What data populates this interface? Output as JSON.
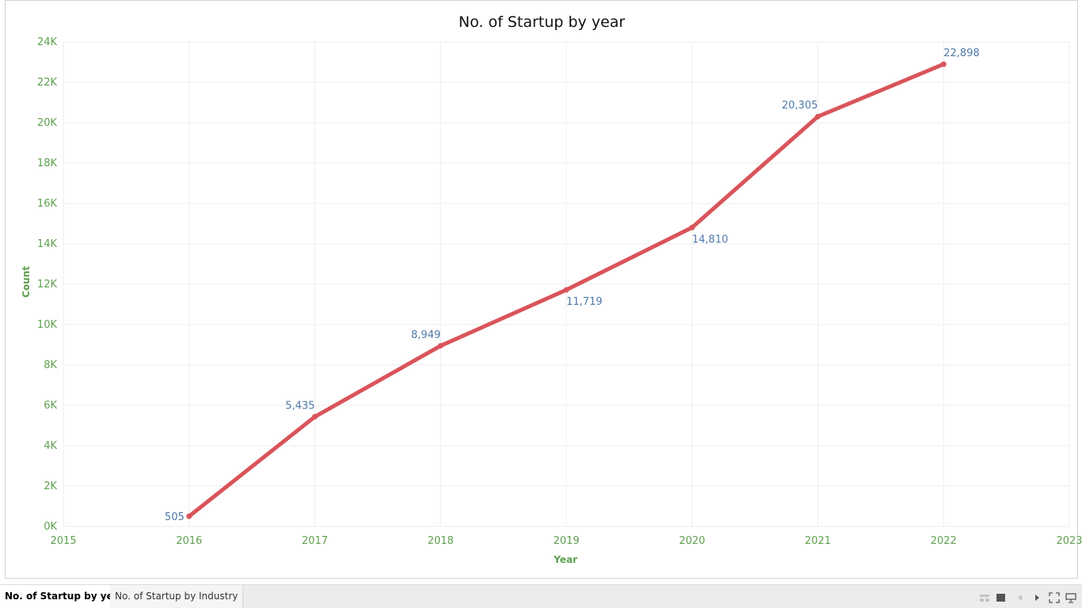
{
  "tabs": [
    {
      "label": "No. of Startup by year",
      "active": true
    },
    {
      "label": "No. of Startup by Industry",
      "active": false
    }
  ],
  "controls": [
    "grid-view-icon",
    "single-view-icon",
    "prev-icon",
    "next-icon",
    "fullscreen-icon",
    "present-icon"
  ],
  "colors": {
    "line": "#d9545a",
    "axis_text": "#5ea04e",
    "data_label": "#4e79a7",
    "grid": "#eeeeee",
    "title": "#111111"
  },
  "chart_data": {
    "type": "line",
    "title": "No. of Startup by year",
    "xlabel": "Year",
    "ylabel": "Count",
    "x_ticks": [
      "2015",
      "2016",
      "2017",
      "2018",
      "2019",
      "2020",
      "2021",
      "2022",
      "2023"
    ],
    "xlim": [
      2015,
      2023
    ],
    "y_ticks": [
      "0K",
      "2K",
      "4K",
      "6K",
      "8K",
      "10K",
      "12K",
      "14K",
      "16K",
      "18K",
      "20K",
      "22K",
      "24K"
    ],
    "ylim": [
      0,
      24000
    ],
    "grid": true,
    "series": [
      {
        "points": [
          {
            "x": 2016,
            "y": 505,
            "label": "505",
            "label_pos": "left"
          },
          {
            "x": 2017,
            "y": 5435,
            "label": "5,435",
            "label_pos": "above-left"
          },
          {
            "x": 2018,
            "y": 8949,
            "label": "8,949",
            "label_pos": "above-left"
          },
          {
            "x": 2019,
            "y": 11719,
            "label": "11,719",
            "label_pos": "below-right"
          },
          {
            "x": 2020,
            "y": 14810,
            "label": "14,810",
            "label_pos": "below-right"
          },
          {
            "x": 2021,
            "y": 20305,
            "label": "20,305",
            "label_pos": "above-left"
          },
          {
            "x": 2022,
            "y": 22898,
            "label": "22,898",
            "label_pos": "above-right"
          }
        ]
      }
    ]
  }
}
